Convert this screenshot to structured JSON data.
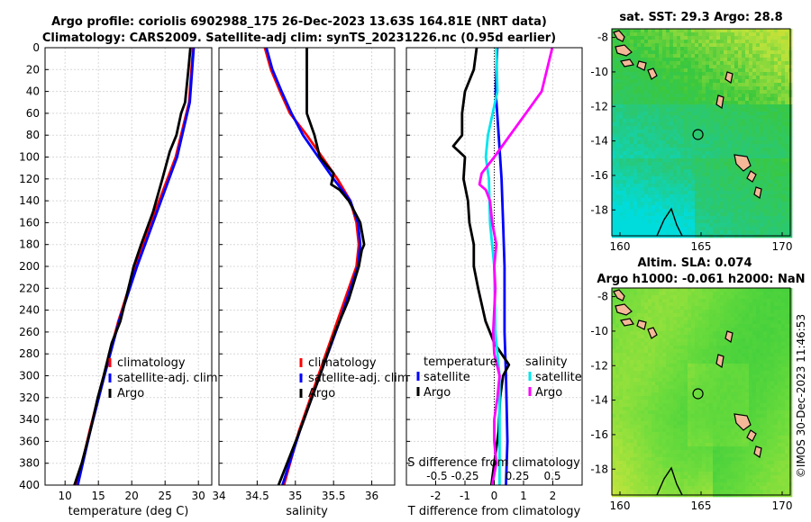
{
  "header": {
    "line1": "Argo profile: coriolis 6902988_175 26-Dec-2023 13.63S 164.81E (NRT data)",
    "line2": "Climatology: CARS2009. Satellite-adj clim: synTS_20231226.nc (0.95d earlier)"
  },
  "map_titles": {
    "sst": "sat. SST: 29.3 Argo: 28.8",
    "sla": "Altim. SLA: 0.074",
    "height": "Argo h1000: -0.061 h2000: NaN"
  },
  "copyright": "©IMOS 30-Dec-2023 11:46:53",
  "colors": {
    "climatology": "#ff0000",
    "satellite": "#0000ff",
    "argo": "#000000",
    "sal_satellite": "#00e5ee",
    "sal_argo": "#ff00ff",
    "land": "#f4b898"
  },
  "chart_data": [
    {
      "type": "line",
      "xlabel": "temperature (deg C)",
      "ylabel": "",
      "xlim": [
        7,
        32
      ],
      "ylim": [
        400,
        0
      ],
      "xticks": [
        10,
        15,
        20,
        25,
        30
      ],
      "yticks": [
        0,
        20,
        40,
        60,
        80,
        100,
        120,
        140,
        160,
        180,
        200,
        220,
        240,
        260,
        280,
        300,
        320,
        340,
        360,
        380,
        400
      ],
      "legend": [
        "climatology",
        "satellite-adj. clim",
        "Argo"
      ],
      "series": [
        {
          "name": "climatology",
          "color": "#ff0000",
          "depth": [
            0,
            50,
            100,
            150,
            200,
            250,
            300,
            350,
            400
          ],
          "values": [
            29.2,
            28.6,
            26.6,
            23.5,
            20.6,
            18.0,
            15.8,
            13.7,
            11.8
          ]
        },
        {
          "name": "satellite-adj. clim",
          "color": "#0000ff",
          "depth": [
            0,
            50,
            100,
            150,
            200,
            250,
            300,
            350,
            400
          ],
          "values": [
            29.3,
            28.7,
            26.8,
            23.8,
            20.8,
            18.1,
            15.9,
            13.8,
            11.9
          ]
        },
        {
          "name": "Argo",
          "color": "#000000",
          "depth": [
            0,
            20,
            50,
            60,
            80,
            95,
            120,
            150,
            180,
            200,
            220,
            250,
            270,
            300,
            320,
            350,
            380,
            400
          ],
          "values": [
            28.8,
            28.5,
            28.0,
            27.4,
            26.7,
            25.7,
            24.6,
            23.2,
            21.4,
            20.3,
            19.5,
            18.3,
            17.0,
            15.8,
            14.9,
            13.8,
            12.5,
            11.4
          ]
        }
      ]
    },
    {
      "type": "line",
      "xlabel": "salinity",
      "ylabel": "",
      "xlim": [
        34,
        36.3
      ],
      "ylim": [
        400,
        0
      ],
      "xticks": [
        34,
        34.5,
        35,
        35.5,
        36
      ],
      "legend": [
        "climatology",
        "satellite-adj. clim",
        "Argo"
      ],
      "series": [
        {
          "name": "climatology",
          "color": "#ff0000",
          "depth": [
            0,
            20,
            40,
            60,
            80,
            100,
            120,
            140,
            160,
            180,
            200,
            250,
            300,
            350,
            400
          ],
          "values": [
            34.6,
            34.68,
            34.8,
            34.93,
            35.15,
            35.35,
            35.55,
            35.72,
            35.8,
            35.83,
            35.8,
            35.55,
            35.3,
            35.05,
            34.85
          ]
        },
        {
          "name": "satellite-adj. clim",
          "color": "#0000ff",
          "depth": [
            0,
            20,
            40,
            60,
            80,
            100,
            120,
            140,
            160,
            180,
            200,
            250,
            300,
            350,
            400
          ],
          "values": [
            34.62,
            34.7,
            34.82,
            34.95,
            35.1,
            35.3,
            35.5,
            35.72,
            35.82,
            35.85,
            35.82,
            35.58,
            35.32,
            35.06,
            34.83
          ]
        },
        {
          "name": "Argo",
          "color": "#000000",
          "depth": [
            0,
            30,
            60,
            80,
            100,
            115,
            125,
            130,
            140,
            160,
            180,
            185,
            200,
            230,
            260,
            300,
            350,
            400
          ],
          "values": [
            35.15,
            35.15,
            35.15,
            35.25,
            35.32,
            35.5,
            35.47,
            35.58,
            35.7,
            35.85,
            35.9,
            35.87,
            35.83,
            35.7,
            35.52,
            35.32,
            35.06,
            34.78
          ]
        }
      ]
    },
    {
      "type": "line",
      "xlabel": "T difference from climatology",
      "ylabel": "",
      "xlim": [
        -3,
        3
      ],
      "ylim": [
        400,
        0
      ],
      "xticks": [
        -2,
        -1,
        0,
        1,
        2
      ],
      "top_axis_label": "S difference from climatology",
      "top_ticks": [
        -0.5,
        -0.25,
        0.25,
        0.5
      ],
      "top_ticks_text": [
        "-0.5",
        "-0.25",
        "0.25",
        "0.5"
      ],
      "legend_groups": {
        "temperature": "temperature",
        "salinity": "salinity"
      },
      "legend": [
        "satellite",
        "Argo",
        "satellite",
        "Argo"
      ],
      "series": [
        {
          "name": "temperature satellite",
          "color": "#0000ff",
          "depth": [
            0,
            40,
            80,
            120,
            160,
            200,
            260,
            300,
            360,
            400
          ],
          "values": [
            0.1,
            0.05,
            0.15,
            0.25,
            0.3,
            0.35,
            0.35,
            0.4,
            0.45,
            0.4
          ]
        },
        {
          "name": "temperature Argo",
          "color": "#000000",
          "depth": [
            0,
            20,
            40,
            60,
            80,
            90,
            100,
            120,
            140,
            160,
            180,
            200,
            220,
            250,
            270,
            290,
            300,
            320,
            350,
            380,
            400
          ],
          "values": [
            -0.6,
            -0.7,
            -1.0,
            -1.1,
            -1.1,
            -1.4,
            -1.0,
            -1.05,
            -0.9,
            -0.85,
            -0.7,
            -0.7,
            -0.55,
            -0.3,
            0.0,
            0.5,
            0.3,
            0.2,
            0.15,
            0.0,
            -0.1
          ]
        },
        {
          "name": "salinity satellite",
          "color": "#00e5ee",
          "depth": [
            0,
            40,
            80,
            100,
            120,
            160,
            200,
            260,
            300,
            360,
            400
          ],
          "values": [
            0.02,
            0.03,
            -0.06,
            -0.08,
            -0.05,
            -0.04,
            0.0,
            0.01,
            0.05,
            0.05,
            0.05
          ]
        },
        {
          "name": "salinity Argo",
          "color": "#ff00ff",
          "depth": [
            0,
            20,
            40,
            60,
            80,
            100,
            115,
            125,
            130,
            140,
            160,
            180,
            200,
            220,
            240,
            260,
            280,
            300,
            320,
            340,
            360,
            380,
            400
          ],
          "values": [
            0.55,
            0.5,
            0.45,
            0.3,
            0.15,
            0.0,
            -0.12,
            -0.14,
            -0.08,
            -0.04,
            -0.02,
            0.02,
            0.0,
            0.01,
            0.0,
            -0.01,
            0.0,
            0.05,
            0.03,
            0.0,
            0.0,
            0.02,
            -0.02
          ]
        }
      ]
    },
    {
      "type": "heatmap",
      "title": "sat. SST: 29.3 Argo: 28.8",
      "xticks": [
        160,
        165,
        170
      ],
      "yticks": [
        -8,
        -10,
        -12,
        -14,
        -16,
        -18
      ],
      "xlim": [
        159.5,
        170.5
      ],
      "ylim": [
        -19.5,
        -7.5
      ],
      "argo_position": {
        "lon": 164.81,
        "lat": -13.63
      }
    },
    {
      "type": "heatmap",
      "title": "Argo h1000: -0.061 h2000: NaN",
      "xticks": [
        160,
        165,
        170
      ],
      "yticks": [
        -8,
        -10,
        -12,
        -14,
        -16,
        -18
      ],
      "xlim": [
        159.5,
        170.5
      ],
      "ylim": [
        -19.5,
        -7.5
      ],
      "argo_position": {
        "lon": 164.81,
        "lat": -13.63
      }
    }
  ]
}
